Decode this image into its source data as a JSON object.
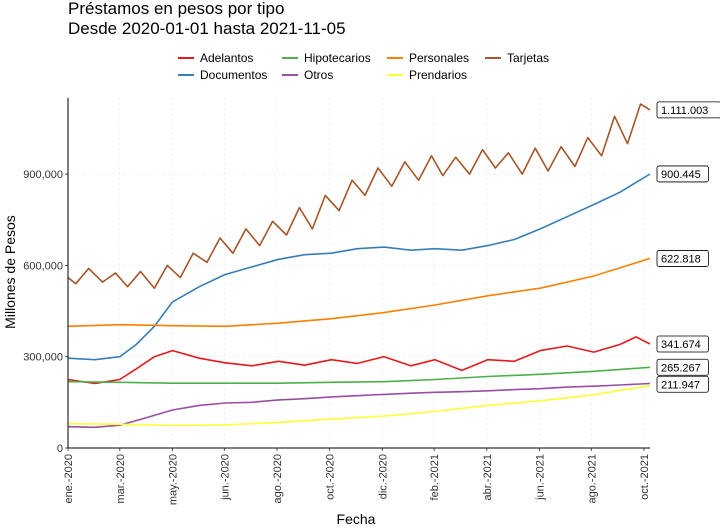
{
  "chart_data": {
    "type": "line",
    "title": "Préstamos en pesos por tipo",
    "subtitle": "Desde 2020-01-01 hasta 2021-11-05",
    "xlabel": "Fecha",
    "ylabel": "Millones de Pesos",
    "xlim": [
      "2020-01-01",
      "2021-11-05"
    ],
    "ylim": [
      0,
      1150000
    ],
    "y_ticks": [
      {
        "value": 0,
        "label": "0"
      },
      {
        "value": 300000,
        "label": "300,000"
      },
      {
        "value": 600000,
        "label": "600,000"
      },
      {
        "value": 900000,
        "label": "900,000"
      }
    ],
    "x_ticks": [
      {
        "date": "2020-01-01",
        "label": "ene.-2020"
      },
      {
        "date": "2020-03-01",
        "label": "mar.-2020"
      },
      {
        "date": "2020-05-01",
        "label": "may.-2020"
      },
      {
        "date": "2020-06-30",
        "label": "jun.-2020"
      },
      {
        "date": "2020-08-30",
        "label": "ago.-2020"
      },
      {
        "date": "2020-10-30",
        "label": "oct.-2020"
      },
      {
        "date": "2020-12-30",
        "label": "dic.-2020"
      },
      {
        "date": "2021-02-28",
        "label": "feb.-2021"
      },
      {
        "date": "2021-04-30",
        "label": "abr.-2021"
      },
      {
        "date": "2021-06-30",
        "label": "jun.-2021"
      },
      {
        "date": "2021-08-29",
        "label": "ago.-2021"
      },
      {
        "date": "2021-10-29",
        "label": "oct.-2021"
      }
    ],
    "grid": true,
    "legend_position": "top",
    "series": [
      {
        "name": "Adelantos",
        "color": "#e41a1c",
        "end_label": "341.674",
        "x": [
          "2020-01-01",
          "2020-02-01",
          "2020-03-01",
          "2020-03-20",
          "2020-04-10",
          "2020-05-01",
          "2020-06-01",
          "2020-07-01",
          "2020-08-01",
          "2020-09-01",
          "2020-10-01",
          "2020-11-01",
          "2020-12-01",
          "2021-01-01",
          "2021-02-01",
          "2021-03-01",
          "2021-04-01",
          "2021-05-01",
          "2021-06-01",
          "2021-07-01",
          "2021-08-01",
          "2021-09-01",
          "2021-10-01",
          "2021-10-20",
          "2021-11-05"
        ],
        "y": [
          225000,
          212000,
          225000,
          260000,
          300000,
          320000,
          295000,
          280000,
          270000,
          285000,
          272000,
          290000,
          278000,
          300000,
          270000,
          290000,
          255000,
          290000,
          285000,
          320000,
          335000,
          315000,
          340000,
          365000,
          341674
        ]
      },
      {
        "name": "Documentos",
        "color": "#377eb8",
        "end_label": "900.445",
        "x": [
          "2020-01-01",
          "2020-02-01",
          "2020-03-01",
          "2020-03-20",
          "2020-04-10",
          "2020-05-01",
          "2020-06-01",
          "2020-07-01",
          "2020-08-01",
          "2020-09-01",
          "2020-10-01",
          "2020-11-01",
          "2020-12-01",
          "2021-01-01",
          "2021-02-01",
          "2021-03-01",
          "2021-04-01",
          "2021-05-01",
          "2021-06-01",
          "2021-07-01",
          "2021-08-01",
          "2021-09-01",
          "2021-10-01",
          "2021-11-05"
        ],
        "y": [
          295000,
          290000,
          300000,
          340000,
          400000,
          480000,
          530000,
          570000,
          595000,
          620000,
          635000,
          640000,
          655000,
          660000,
          650000,
          655000,
          650000,
          665000,
          685000,
          720000,
          760000,
          800000,
          840000,
          900445
        ]
      },
      {
        "name": "Hipotecarios",
        "color": "#4daf4a",
        "end_label": "265.267",
        "x": [
          "2020-01-01",
          "2020-03-01",
          "2020-05-01",
          "2020-07-01",
          "2020-09-01",
          "2020-11-01",
          "2021-01-01",
          "2021-03-01",
          "2021-05-01",
          "2021-07-01",
          "2021-09-01",
          "2021-11-05"
        ],
        "y": [
          218000,
          216000,
          213000,
          213000,
          213000,
          216000,
          218000,
          225000,
          235000,
          242000,
          252000,
          265267
        ]
      },
      {
        "name": "Otros",
        "color": "#984ea3",
        "end_label": "211.947",
        "x": [
          "2020-01-01",
          "2020-02-01",
          "2020-03-01",
          "2020-04-01",
          "2020-05-01",
          "2020-06-01",
          "2020-07-01",
          "2020-08-01",
          "2020-09-01",
          "2020-10-01",
          "2020-11-01",
          "2020-12-01",
          "2021-01-01",
          "2021-02-01",
          "2021-03-01",
          "2021-04-01",
          "2021-05-01",
          "2021-06-01",
          "2021-07-01",
          "2021-08-01",
          "2021-09-01",
          "2021-10-01",
          "2021-11-05"
        ],
        "y": [
          70000,
          68000,
          75000,
          100000,
          125000,
          140000,
          148000,
          150000,
          158000,
          162000,
          168000,
          172000,
          176000,
          180000,
          183000,
          185000,
          188000,
          192000,
          195000,
          200000,
          203000,
          207000,
          211947
        ]
      },
      {
        "name": "Personales",
        "color": "#ff7f00",
        "end_label": "622.818",
        "x": [
          "2020-01-01",
          "2020-03-01",
          "2020-05-01",
          "2020-07-01",
          "2020-09-01",
          "2020-11-01",
          "2021-01-01",
          "2021-03-01",
          "2021-05-01",
          "2021-07-01",
          "2021-09-01",
          "2021-11-05"
        ],
        "y": [
          400000,
          405000,
          402000,
          400000,
          410000,
          425000,
          445000,
          470000,
          500000,
          525000,
          565000,
          622818
        ]
      },
      {
        "name": "Prendarios",
        "color": "#ffff33",
        "end_label": "",
        "x": [
          "2020-01-01",
          "2020-03-01",
          "2020-05-01",
          "2020-07-01",
          "2020-09-01",
          "2020-11-01",
          "2021-01-01",
          "2021-03-01",
          "2021-05-01",
          "2021-07-01",
          "2021-09-01",
          "2021-11-05"
        ],
        "y": [
          80000,
          78000,
          74000,
          76000,
          84000,
          95000,
          105000,
          120000,
          140000,
          155000,
          175000,
          205000
        ]
      },
      {
        "name": "Tarjetas",
        "color": "#a65628",
        "end_label": "1.111.003",
        "x": [
          "2020-01-01",
          "2020-01-10",
          "2020-01-25",
          "2020-02-10",
          "2020-02-25",
          "2020-03-10",
          "2020-03-25",
          "2020-04-10",
          "2020-04-25",
          "2020-05-10",
          "2020-05-25",
          "2020-06-10",
          "2020-06-25",
          "2020-07-10",
          "2020-07-25",
          "2020-08-10",
          "2020-08-25",
          "2020-09-10",
          "2020-09-25",
          "2020-10-10",
          "2020-10-25",
          "2020-11-10",
          "2020-11-25",
          "2020-12-10",
          "2020-12-25",
          "2021-01-10",
          "2021-01-25",
          "2021-02-10",
          "2021-02-25",
          "2021-03-10",
          "2021-03-25",
          "2021-04-10",
          "2021-04-25",
          "2021-05-10",
          "2021-05-25",
          "2021-06-10",
          "2021-06-25",
          "2021-07-10",
          "2021-07-25",
          "2021-08-10",
          "2021-08-25",
          "2021-09-10",
          "2021-09-25",
          "2021-10-10",
          "2021-10-25",
          "2021-11-05"
        ],
        "y": [
          560000,
          540000,
          590000,
          545000,
          575000,
          530000,
          580000,
          525000,
          600000,
          560000,
          640000,
          610000,
          690000,
          640000,
          720000,
          665000,
          745000,
          700000,
          790000,
          720000,
          830000,
          780000,
          880000,
          830000,
          920000,
          860000,
          940000,
          880000,
          960000,
          895000,
          955000,
          900000,
          980000,
          920000,
          970000,
          900000,
          985000,
          910000,
          990000,
          925000,
          1020000,
          960000,
          1090000,
          1000000,
          1130000,
          1111003
        ]
      }
    ]
  }
}
